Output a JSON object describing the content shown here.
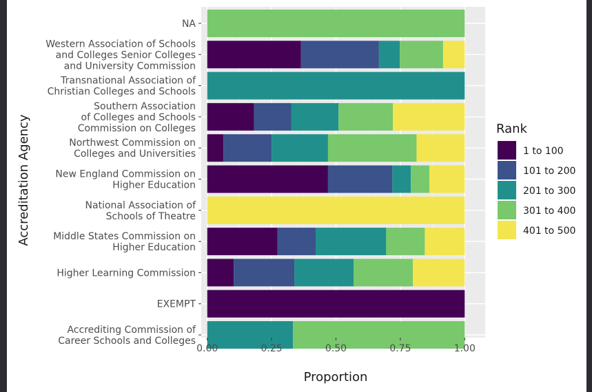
{
  "chart_data": {
    "type": "bar",
    "orientation": "horizontal",
    "stacked": true,
    "xlabel": "Proportion",
    "ylabel": "Accreditation Agency",
    "xlim": [
      0,
      1
    ],
    "x_ticks": [
      "0.00",
      "0.25",
      "0.50",
      "0.75",
      "1.00"
    ],
    "grid": true,
    "legend_title": "Rank",
    "legend_position": "right",
    "categories": [
      [
        "NA"
      ],
      [
        "Western Association of Schools",
        "and Colleges Senior Colleges",
        "and University Commission"
      ],
      [
        "Transnational Association of",
        "Christian Colleges and Schools"
      ],
      [
        "Southern Association",
        "of Colleges and Schools",
        "Commission on Colleges"
      ],
      [
        "Northwest Commission on",
        "Colleges and Universities"
      ],
      [
        "New England Commission on",
        "Higher Education"
      ],
      [
        "National Association of",
        "Schools of Theatre"
      ],
      [
        "Middle States Commission on",
        "Higher Education"
      ],
      [
        "Higher Learning Commission"
      ],
      [
        "EXEMPT"
      ],
      [
        "Accrediting Commission of",
        "Career Schools and Colleges"
      ]
    ],
    "series": [
      {
        "name": "1 to 100",
        "color": "#440154",
        "values": [
          0,
          0.364,
          0,
          0.182,
          0.063,
          0.469,
          0,
          0.273,
          0.103,
          1,
          0
        ]
      },
      {
        "name": "101 to 200",
        "color": "#3b528b",
        "values": [
          0,
          0.303,
          0,
          0.144,
          0.187,
          0.25,
          0,
          0.148,
          0.236,
          0,
          0
        ]
      },
      {
        "name": "201 to 300",
        "color": "#21908c",
        "values": [
          0,
          0.081,
          1,
          0.184,
          0.219,
          0.072,
          0,
          0.274,
          0.23,
          0,
          0.333
        ]
      },
      {
        "name": "301 to 400",
        "color": "#79c86b",
        "values": [
          1,
          0.168,
          0,
          0.211,
          0.344,
          0.072,
          0,
          0.15,
          0.23,
          0,
          0.667
        ]
      },
      {
        "name": "401 to 500",
        "color": "#f3e550",
        "values": [
          0,
          0.084,
          0,
          0.279,
          0.187,
          0.137,
          1,
          0.155,
          0.201,
          0,
          0
        ]
      }
    ]
  }
}
